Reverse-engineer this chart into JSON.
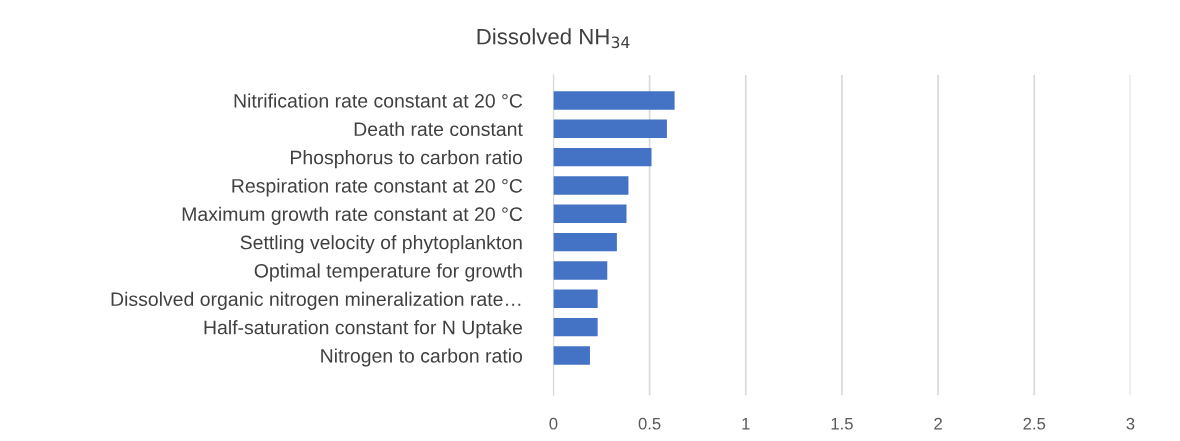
{
  "chart_data": {
    "type": "bar",
    "orientation": "horizontal",
    "title": "Dissolved NH$_{34}$",
    "categories": [
      "Nitrification rate constant at 20 °C",
      "Death rate constant",
      "Phosphorus to carbon ratio",
      "Respiration rate constant at 20 °C",
      "Maximum growth rate constant at 20 °C",
      "Settling velocity of phytoplankton",
      "Optimal temperature for growth",
      "Dissolved organic nitrogen mineralization rate…",
      "Half-saturation constant for N Uptake",
      "Nitrogen to carbon ratio"
    ],
    "values": [
      0.63,
      0.59,
      0.51,
      0.39,
      0.38,
      0.33,
      0.28,
      0.23,
      0.23,
      0.19
    ],
    "color": "#4472c4",
    "xlim": [
      0,
      3
    ],
    "xticks": [
      0,
      0.5,
      1,
      1.5,
      2,
      2.5,
      3
    ],
    "grid": "x"
  }
}
